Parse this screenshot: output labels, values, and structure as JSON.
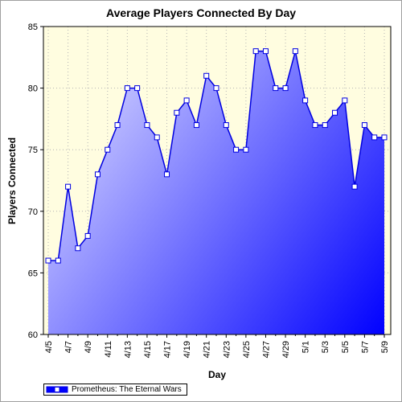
{
  "chart_data": {
    "type": "area",
    "title": "Average Players Connected By Day",
    "xlabel": "Day",
    "ylabel": "Players Connected",
    "ylim": [
      60,
      85
    ],
    "yticks": [
      60,
      65,
      70,
      75,
      80,
      85
    ],
    "grid": true,
    "legend_position": "bottom-left",
    "x": [
      "4/5",
      "4/6",
      "4/7",
      "4/8",
      "4/9",
      "4/10",
      "4/11",
      "4/12",
      "4/13",
      "4/14",
      "4/15",
      "4/16",
      "4/17",
      "4/18",
      "4/19",
      "4/20",
      "4/21",
      "4/22",
      "4/23",
      "4/24",
      "4/25",
      "4/26",
      "4/27",
      "4/28",
      "4/29",
      "4/30",
      "5/1",
      "5/2",
      "5/3",
      "5/4",
      "5/5",
      "5/6",
      "5/7",
      "5/8",
      "5/9"
    ],
    "x_tick_labels": [
      "4/5",
      "4/7",
      "4/9",
      "4/11",
      "4/13",
      "4/15",
      "4/17",
      "4/19",
      "4/21",
      "4/23",
      "4/25",
      "4/27",
      "4/29",
      "5/1",
      "5/3",
      "5/5",
      "5/7",
      "5/9"
    ],
    "series": [
      {
        "name": "Prometheus: The Eternal Wars",
        "values": [
          66,
          66,
          72,
          67,
          68,
          73,
          75,
          77,
          80,
          80,
          77,
          76,
          73,
          78,
          79,
          77,
          81,
          80,
          77,
          75,
          75,
          83,
          83,
          80,
          80,
          83,
          79,
          77,
          77,
          78,
          79,
          72,
          77,
          76,
          76
        ]
      }
    ],
    "colors": {
      "plot_background": "#fffde0",
      "line": "#0000e0",
      "fill_light": "#dcdcff",
      "fill_dark": "#0000ff",
      "marker_fill": "#ffffff",
      "grid": "#b4b4b4"
    }
  }
}
